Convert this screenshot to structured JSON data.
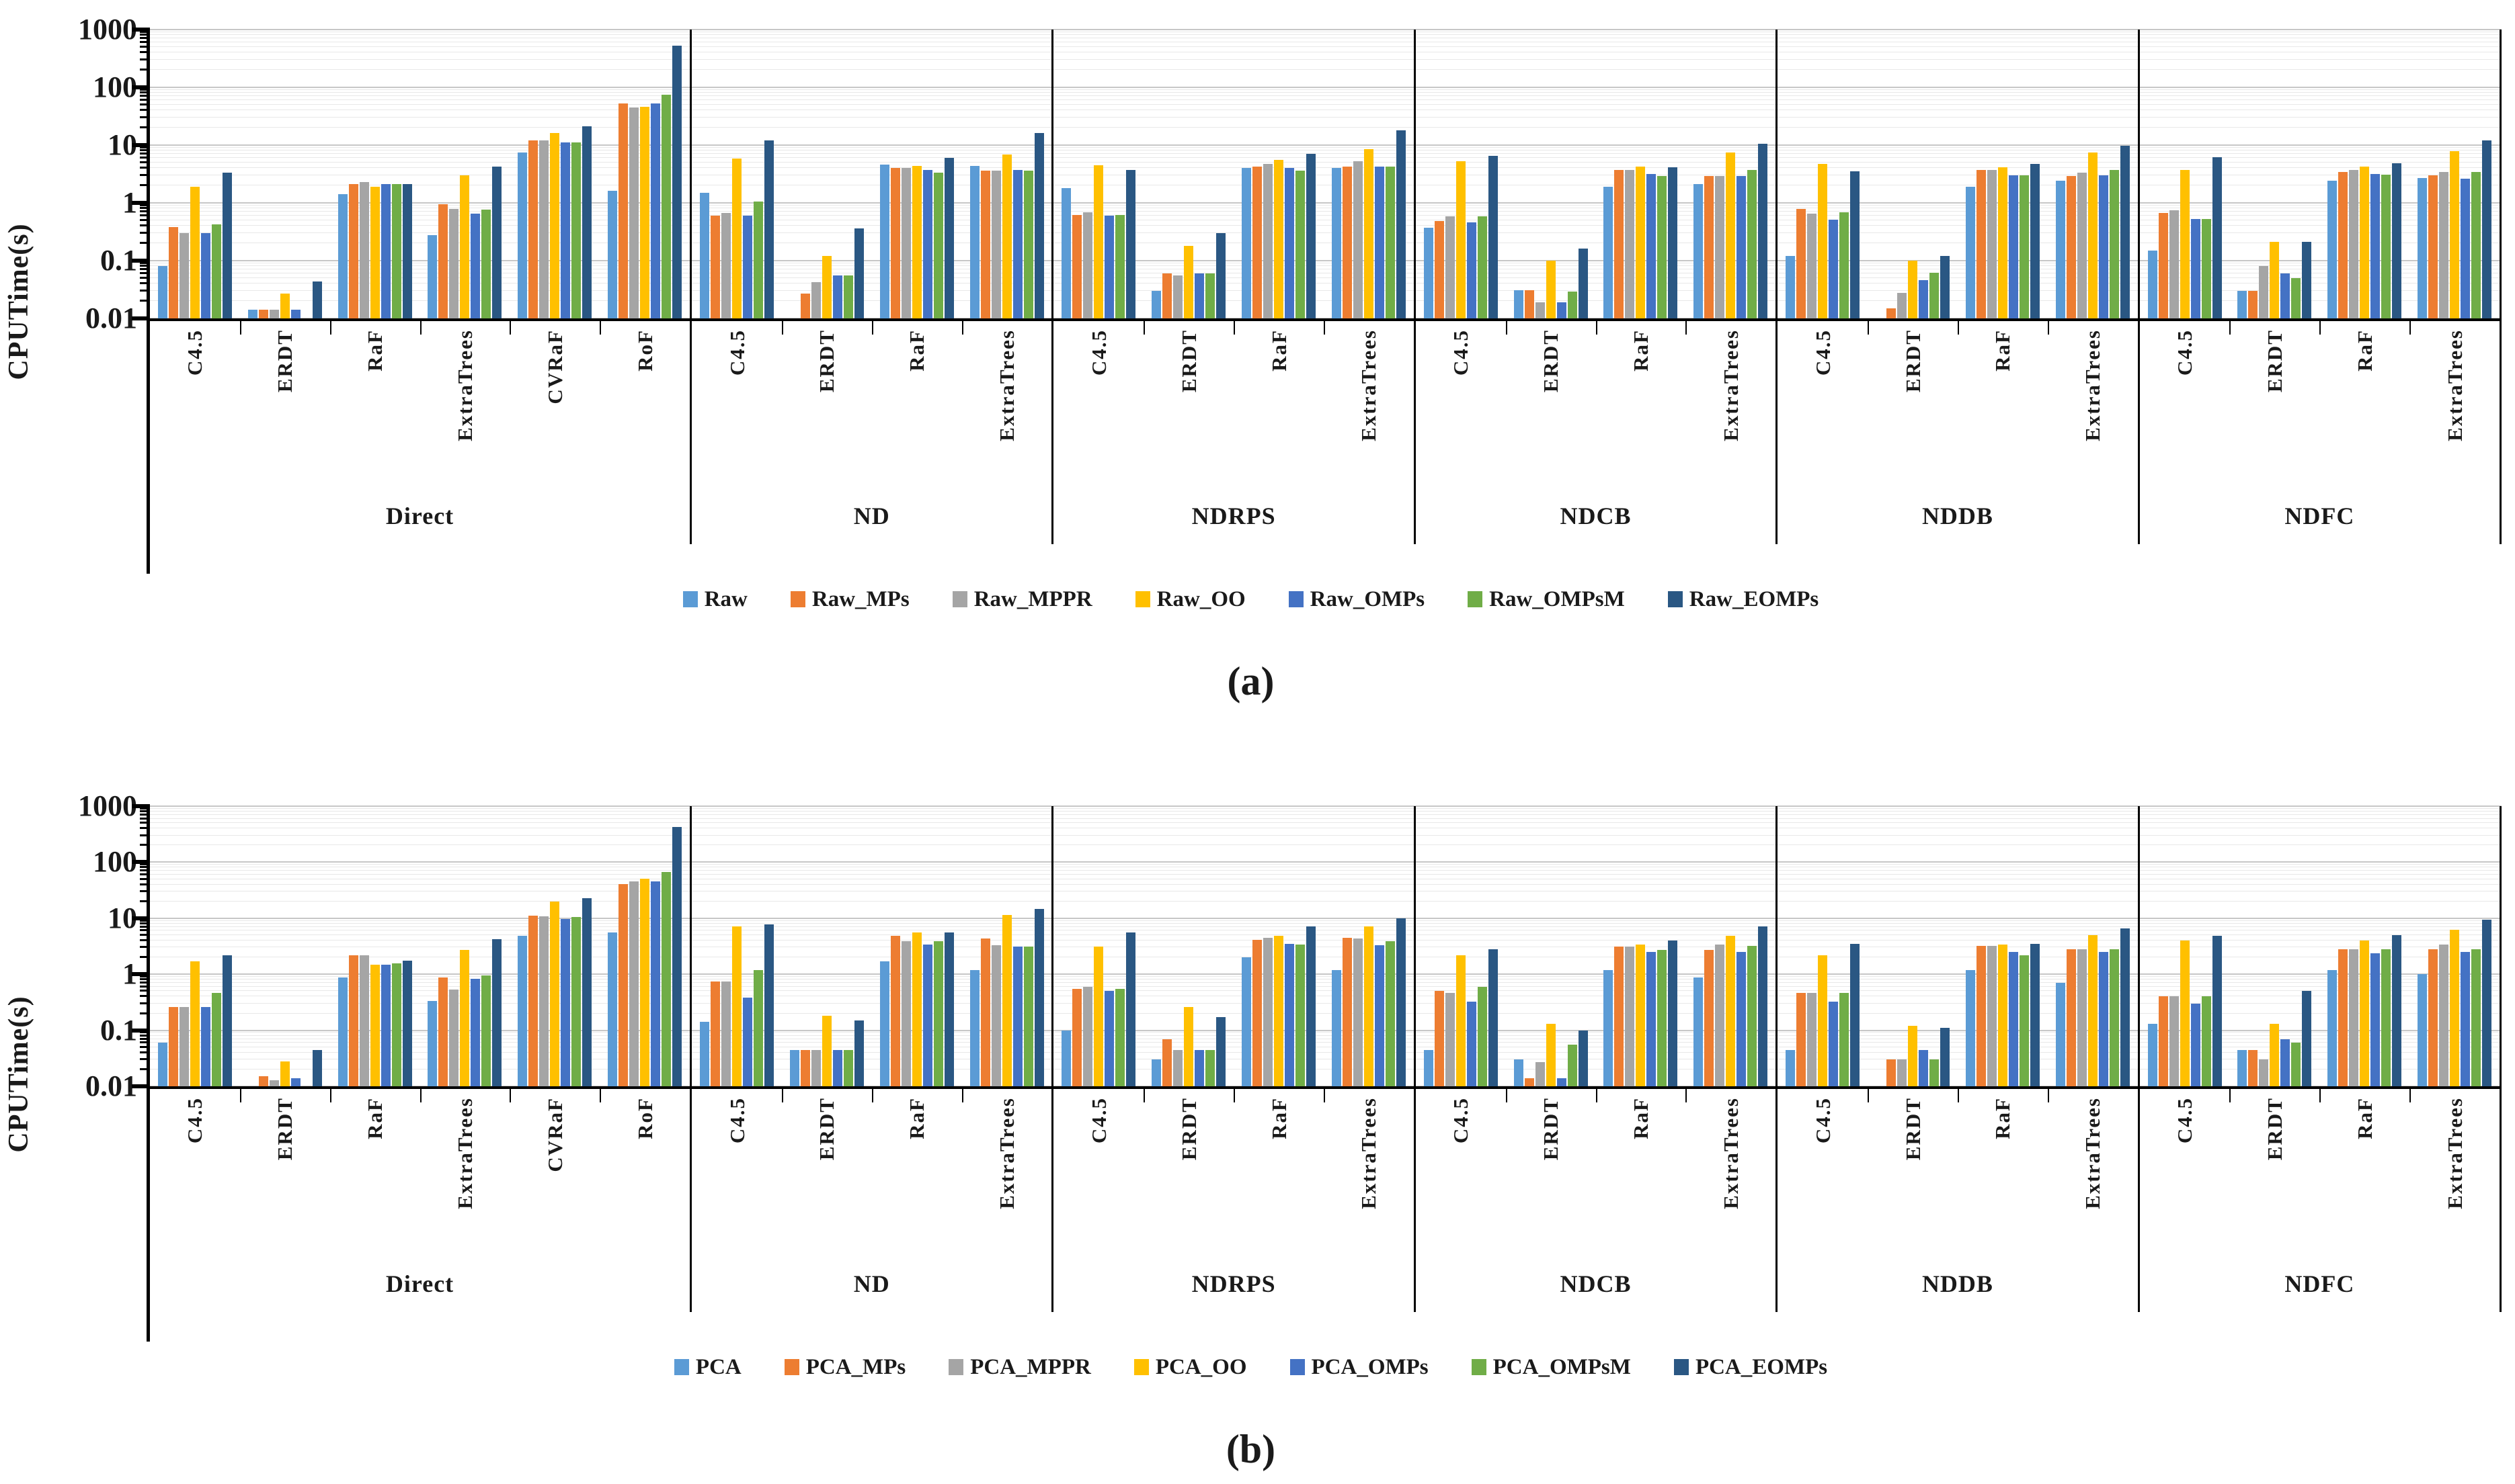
{
  "chart_data": [
    {
      "panel": "a",
      "type": "bar",
      "y_scale": "log",
      "ylabel": "CPUTime(s)",
      "ylim": [
        0.01,
        1000
      ],
      "ytick_labels": [
        "1000",
        "100",
        "10",
        "1",
        "0.1",
        "0.01"
      ],
      "ytick_values": [
        1000,
        100,
        10,
        1,
        0.1,
        0.01
      ],
      "grid": true,
      "legend_position": "bottom",
      "caption": "(a)",
      "series_names": [
        "Raw",
        "Raw_MPs",
        "Raw_MPPR",
        "Raw_OO",
        "Raw_OMPs",
        "Raw_OMPsM",
        "Raw_EOMPs"
      ],
      "series_colors": [
        "#5b9bd5",
        "#ed7d31",
        "#a5a5a5",
        "#ffc000",
        "#4472c4",
        "#70ad47",
        "#2a5783"
      ],
      "sections": [
        {
          "label": "Direct",
          "categories": [
            "C4.5",
            "ERDT",
            "RaF",
            "ExtraTrees",
            "CVRaF",
            "RoF"
          ],
          "values": [
            [
              0.08,
              0.38,
              0.3,
              1.9,
              0.3,
              0.42,
              3.3
            ],
            [
              0.014,
              0.014,
              0.014,
              0.027,
              0.014,
              0.01,
              0.044
            ],
            [
              1.4,
              2.1,
              2.3,
              1.9,
              2.1,
              2.1,
              2.1
            ],
            [
              0.28,
              0.95,
              0.78,
              3.0,
              0.65,
              0.76,
              4.2
            ],
            [
              7.5,
              12,
              12,
              16,
              11,
              11,
              21
            ],
            [
              1.6,
              53,
              45,
              46,
              52,
              74,
              520
            ]
          ]
        },
        {
          "label": "ND",
          "categories": [
            "C4.5",
            "ERDT",
            "RaF",
            "ExtraTrees"
          ],
          "values": [
            [
              1.5,
              0.6,
              0.67,
              5.8,
              0.6,
              1.05,
              12
            ],
            [
              0.01,
              0.027,
              0.043,
              0.12,
              0.055,
              0.055,
              0.36
            ],
            [
              4.6,
              4.0,
              4.0,
              4.4,
              3.7,
              3.3,
              6.0
            ],
            [
              4.4,
              3.6,
              3.6,
              6.9,
              3.7,
              3.6,
              16
            ]
          ]
        },
        {
          "label": "NDRPS",
          "categories": [
            "C4.5",
            "ERDT",
            "RaF",
            "ExtraTrees"
          ],
          "values": [
            [
              1.8,
              0.61,
              0.69,
              4.5,
              0.6,
              0.61,
              3.7
            ],
            [
              0.03,
              0.06,
              0.056,
              0.18,
              0.06,
              0.06,
              0.3
            ],
            [
              4.0,
              4.2,
              4.7,
              5.5,
              4.0,
              3.6,
              7.0
            ],
            [
              4.0,
              4.3,
              5.2,
              8.6,
              4.2,
              4.2,
              18
            ]
          ]
        },
        {
          "label": "NDCB",
          "categories": [
            "C4.5",
            "ERDT",
            "RaF",
            "ExtraTrees"
          ],
          "values": [
            [
              0.37,
              0.49,
              0.58,
              5.2,
              0.46,
              0.58,
              6.5
            ],
            [
              0.031,
              0.031,
              0.019,
              0.1,
              0.019,
              0.029,
              0.16
            ],
            [
              1.9,
              3.7,
              3.7,
              4.3,
              3.2,
              2.9,
              4.1
            ],
            [
              2.1,
              2.9,
              2.9,
              7.5,
              2.9,
              3.7,
              10.5
            ]
          ]
        },
        {
          "label": "NDDB",
          "categories": [
            "C4.5",
            "ERDT",
            "RaF",
            "ExtraTrees"
          ],
          "values": [
            [
              0.12,
              0.78,
              0.66,
              4.7,
              0.51,
              0.69,
              3.5
            ],
            [
              0.01,
              0.015,
              0.028,
              0.1,
              0.046,
              0.062,
              0.12
            ],
            [
              1.9,
              3.7,
              3.7,
              4.1,
              3.0,
              3.0,
              4.7
            ],
            [
              2.4,
              2.9,
              3.3,
              7.5,
              3.0,
              3.7,
              9.7
            ]
          ]
        },
        {
          "label": "NDFC",
          "categories": [
            "C4.5",
            "ERDT",
            "RaF",
            "ExtraTrees"
          ],
          "values": [
            [
              0.15,
              0.67,
              0.75,
              3.7,
              0.52,
              0.53,
              6.1
            ],
            [
              0.03,
              0.03,
              0.08,
              0.21,
              0.06,
              0.05,
              0.21
            ],
            [
              2.4,
              3.4,
              3.7,
              4.2,
              3.2,
              3.1,
              4.8
            ],
            [
              2.7,
              3.0,
              3.4,
              7.9,
              2.6,
              3.4,
              12
            ]
          ]
        }
      ]
    },
    {
      "panel": "b",
      "type": "bar",
      "y_scale": "log",
      "ylabel": "CPUTime(s)",
      "ylim": [
        0.01,
        1000
      ],
      "ytick_labels": [
        "1000",
        "100",
        "10",
        "1",
        "0.1",
        "0.01"
      ],
      "ytick_values": [
        1000,
        100,
        10,
        1,
        0.1,
        0.01
      ],
      "grid": true,
      "legend_position": "bottom",
      "caption": "(b)",
      "series_names": [
        "PCA",
        "PCA_MPs",
        "PCA_MPPR",
        "PCA_OO",
        "PCA_OMPs",
        "PCA_OMPsM",
        "PCA_EOMPs"
      ],
      "series_colors": [
        "#5b9bd5",
        "#ed7d31",
        "#a5a5a5",
        "#ffc000",
        "#4472c4",
        "#70ad47",
        "#2a5783"
      ],
      "sections": [
        {
          "label": "Direct",
          "categories": [
            "C4.5",
            "ERDT",
            "RaF",
            "ExtraTrees",
            "CVRaF",
            "RoF"
          ],
          "values": [
            [
              0.06,
              0.26,
              0.26,
              1.7,
              0.26,
              0.47,
              2.2
            ],
            [
              0.01,
              0.015,
              0.013,
              0.028,
              0.014,
              0.01,
              0.045
            ],
            [
              0.87,
              2.2,
              2.2,
              1.5,
              1.5,
              1.55,
              1.75
            ],
            [
              0.33,
              0.87,
              0.53,
              2.7,
              0.83,
              0.96,
              4.2
            ],
            [
              4.9,
              11,
              10.8,
              20,
              9.8,
              10.5,
              23
            ],
            [
              5.5,
              41,
              46,
              51,
              46,
              66,
              420
            ]
          ]
        },
        {
          "label": "ND",
          "categories": [
            "C4.5",
            "ERDT",
            "RaF",
            "ExtraTrees"
          ],
          "values": [
            [
              0.14,
              0.74,
              0.74,
              7.2,
              0.38,
              1.2,
              7.8
            ],
            [
              0.045,
              0.045,
              0.045,
              0.18,
              0.045,
              0.045,
              0.15
            ],
            [
              1.7,
              4.9,
              3.9,
              5.6,
              3.4,
              3.9,
              5.6
            ],
            [
              1.2,
              4.4,
              3.3,
              11.5,
              3.1,
              3.1,
              14.5
            ]
          ]
        },
        {
          "label": "NDRPS",
          "categories": [
            "C4.5",
            "ERDT",
            "RaF",
            "ExtraTrees"
          ],
          "values": [
            [
              0.1,
              0.55,
              0.6,
              3.1,
              0.5,
              0.55,
              5.6
            ],
            [
              0.03,
              0.07,
              0.045,
              0.26,
              0.045,
              0.045,
              0.17
            ],
            [
              2.0,
              4.1,
              4.5,
              4.9,
              3.5,
              3.4,
              7.1
            ],
            [
              1.2,
              4.5,
              4.4,
              7.1,
              3.3,
              3.9,
              10
            ]
          ]
        },
        {
          "label": "NDCB",
          "categories": [
            "C4.5",
            "ERDT",
            "RaF",
            "ExtraTrees"
          ],
          "values": [
            [
              0.045,
              0.5,
              0.47,
              2.2,
              0.32,
              0.6,
              2.8
            ],
            [
              0.03,
              0.014,
              0.027,
              0.13,
              0.014,
              0.055,
              0.1
            ],
            [
              1.2,
              3.1,
              3.1,
              3.4,
              2.5,
              2.7,
              4.0
            ],
            [
              0.87,
              2.7,
              3.4,
              4.9,
              2.5,
              3.2,
              7.1
            ]
          ]
        },
        {
          "label": "NDDB",
          "categories": [
            "C4.5",
            "ERDT",
            "RaF",
            "ExtraTrees"
          ],
          "values": [
            [
              0.045,
              0.47,
              0.47,
              2.2,
              0.32,
              0.47,
              3.5
            ],
            [
              0.01,
              0.03,
              0.03,
              0.12,
              0.045,
              0.03,
              0.11
            ],
            [
              1.2,
              3.2,
              3.2,
              3.4,
              2.5,
              2.2,
              3.5
            ],
            [
              0.7,
              2.8,
              2.8,
              5.0,
              2.5,
              2.8,
              6.5
            ]
          ]
        },
        {
          "label": "NDFC",
          "categories": [
            "C4.5",
            "ERDT",
            "RaF",
            "ExtraTrees"
          ],
          "values": [
            [
              0.13,
              0.4,
              0.4,
              4.0,
              0.3,
              0.4,
              4.9
            ],
            [
              0.045,
              0.045,
              0.03,
              0.13,
              0.07,
              0.06,
              0.5
            ],
            [
              1.2,
              2.8,
              2.8,
              4.0,
              2.4,
              2.8,
              5.0
            ],
            [
              1.0,
              2.8,
              3.4,
              6.3,
              2.5,
              2.8,
              9.5
            ]
          ]
        }
      ]
    }
  ]
}
